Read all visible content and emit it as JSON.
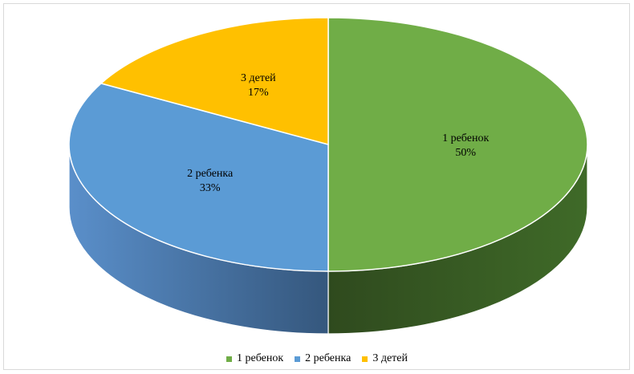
{
  "chart_data": {
    "type": "pie",
    "title": "",
    "categories": [
      "1 ребенок",
      "2 ребенка",
      "3 детей"
    ],
    "values": [
      50,
      33,
      17
    ],
    "value_labels": [
      "50%",
      "33%",
      "17%"
    ],
    "colors": [
      "#70ad47",
      "#5b9bd5",
      "#ffc000"
    ],
    "side_colors": [
      "#3b5e26",
      "#4a78a8",
      "#c89600"
    ],
    "legend_placement": "bottom",
    "style": "3d-pie"
  }
}
